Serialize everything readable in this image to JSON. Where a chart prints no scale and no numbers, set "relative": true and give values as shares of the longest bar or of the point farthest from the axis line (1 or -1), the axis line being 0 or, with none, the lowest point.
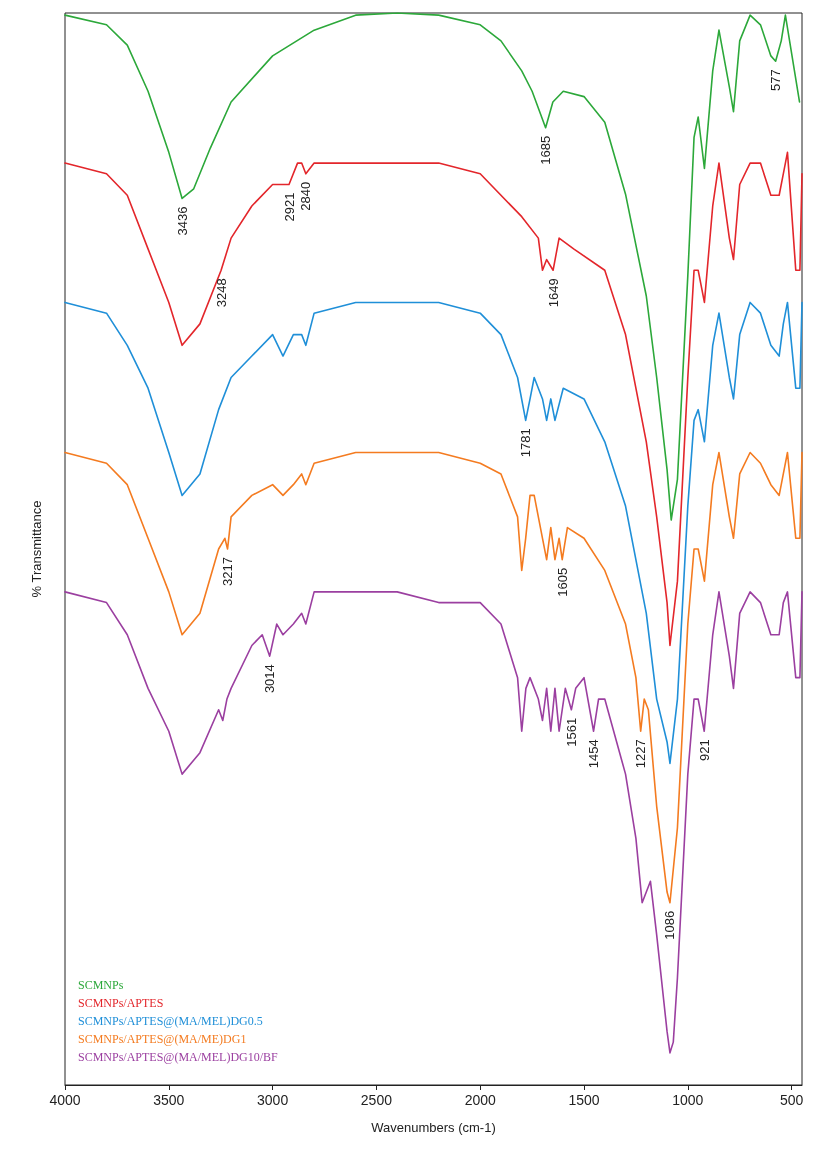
{
  "chart_data": {
    "type": "line",
    "relative": true,
    "xlabel": "Wavenumbers (cm-1)",
    "ylabel": "% Transmittance",
    "xlim": [
      4000,
      450
    ],
    "xticks": [
      4000,
      3500,
      3000,
      2500,
      2000,
      1500,
      1000,
      500
    ],
    "grid": false,
    "legend": "bottom left",
    "marker": "none",
    "line_style": "solid",
    "series": [
      {
        "name": "SCMNPs",
        "color": "#2ca83a",
        "x": [
          4000,
          3800,
          3700,
          3600,
          3500,
          3436,
          3380,
          3300,
          3200,
          3000,
          2800,
          2600,
          2400,
          2200,
          2000,
          1900,
          1800,
          1750,
          1685,
          1650,
          1600,
          1500,
          1400,
          1300,
          1200,
          1150,
          1100,
          1080,
          1050,
          1000,
          970,
          950,
          920,
          880,
          850,
          800,
          780,
          750,
          700,
          650,
          600,
          577,
          550,
          530,
          462
        ],
        "values": [
          0.998,
          0.989,
          0.97,
          0.927,
          0.87,
          0.827,
          0.836,
          0.874,
          0.917,
          0.96,
          0.984,
          0.998,
          1,
          0.998,
          0.989,
          0.974,
          0.946,
          0.927,
          0.893,
          0.917,
          0.927,
          0.922,
          0.898,
          0.831,
          0.736,
          0.66,
          0.574,
          0.527,
          0.565,
          0.755,
          0.884,
          0.903,
          0.855,
          0.946,
          0.984,
          0.931,
          0.908,
          0.974,
          0.998,
          0.989,
          0.96,
          0.955,
          0.974,
          0.998,
          0.917
        ]
      },
      {
        "name": "SCMNPs/APTES",
        "color": "#e3262b",
        "x": [
          4000,
          3800,
          3700,
          3600,
          3500,
          3436,
          3350,
          3248,
          3200,
          3100,
          3000,
          2921,
          2880,
          2860,
          2840,
          2800,
          2600,
          2200,
          2000,
          1800,
          1720,
          1700,
          1680,
          1649,
          1620,
          1550,
          1400,
          1300,
          1200,
          1150,
          1100,
          1086,
          1050,
          1000,
          970,
          950,
          920,
          880,
          850,
          800,
          780,
          750,
          700,
          650,
          600,
          560,
          540,
          520,
          480,
          460,
          450
        ],
        "values": [
          0.86,
          0.85,
          0.83,
          0.78,
          0.73,
          0.69,
          0.71,
          0.76,
          0.79,
          0.82,
          0.84,
          0.84,
          0.86,
          0.86,
          0.85,
          0.86,
          0.86,
          0.86,
          0.85,
          0.81,
          0.79,
          0.76,
          0.77,
          0.76,
          0.79,
          0.78,
          0.76,
          0.7,
          0.6,
          0.53,
          0.45,
          0.41,
          0.47,
          0.66,
          0.76,
          0.76,
          0.73,
          0.82,
          0.86,
          0.79,
          0.77,
          0.84,
          0.86,
          0.86,
          0.83,
          0.83,
          0.85,
          0.87,
          0.76,
          0.76,
          0.85
        ]
      },
      {
        "name": "SCMNPs/APTES@(MA/MEL)DG0.5",
        "color": "#1f8fd8",
        "x": [
          4000,
          3800,
          3700,
          3600,
          3500,
          3436,
          3350,
          3260,
          3200,
          3100,
          3000,
          2950,
          2900,
          2860,
          2840,
          2800,
          2600,
          2400,
          2200,
          2000,
          1900,
          1820,
          1781,
          1760,
          1740,
          1700,
          1680,
          1660,
          1640,
          1600,
          1500,
          1400,
          1300,
          1200,
          1150,
          1100,
          1086,
          1050,
          1000,
          970,
          950,
          920,
          880,
          850,
          800,
          780,
          750,
          700,
          650,
          600,
          560,
          540,
          520,
          480,
          460,
          450
        ],
        "values": [
          0.73,
          0.72,
          0.69,
          0.65,
          0.59,
          0.55,
          0.57,
          0.63,
          0.66,
          0.68,
          0.7,
          0.68,
          0.7,
          0.7,
          0.69,
          0.72,
          0.73,
          0.73,
          0.73,
          0.72,
          0.7,
          0.66,
          0.62,
          0.64,
          0.66,
          0.64,
          0.62,
          0.64,
          0.62,
          0.65,
          0.64,
          0.6,
          0.54,
          0.44,
          0.36,
          0.32,
          0.3,
          0.36,
          0.54,
          0.62,
          0.63,
          0.6,
          0.69,
          0.72,
          0.66,
          0.64,
          0.7,
          0.73,
          0.72,
          0.69,
          0.68,
          0.71,
          0.73,
          0.65,
          0.65,
          0.73
        ]
      },
      {
        "name": "SCMNPs/APTES@(MA/ME)DG1",
        "color": "#f47b20",
        "x": [
          4000,
          3800,
          3700,
          3600,
          3500,
          3436,
          3350,
          3260,
          3230,
          3217,
          3200,
          3100,
          3000,
          2950,
          2900,
          2860,
          2840,
          2800,
          2600,
          2400,
          2200,
          2000,
          1900,
          1820,
          1800,
          1781,
          1760,
          1740,
          1700,
          1680,
          1660,
          1640,
          1620,
          1605,
          1580,
          1500,
          1400,
          1300,
          1250,
          1227,
          1210,
          1190,
          1150,
          1100,
          1086,
          1050,
          1000,
          970,
          950,
          920,
          880,
          850,
          800,
          780,
          750,
          700,
          650,
          600,
          560,
          540,
          520,
          480,
          460,
          450
        ],
        "values": [
          0.59,
          0.58,
          0.56,
          0.51,
          0.46,
          0.42,
          0.44,
          0.5,
          0.51,
          0.5,
          0.53,
          0.55,
          0.56,
          0.55,
          0.56,
          0.57,
          0.56,
          0.58,
          0.59,
          0.59,
          0.59,
          0.58,
          0.57,
          0.53,
          0.48,
          0.51,
          0.55,
          0.55,
          0.51,
          0.49,
          0.52,
          0.49,
          0.51,
          0.49,
          0.52,
          0.51,
          0.48,
          0.43,
          0.38,
          0.33,
          0.36,
          0.35,
          0.26,
          0.18,
          0.17,
          0.24,
          0.43,
          0.5,
          0.5,
          0.47,
          0.56,
          0.59,
          0.53,
          0.51,
          0.57,
          0.59,
          0.58,
          0.56,
          0.55,
          0.57,
          0.59,
          0.51,
          0.51,
          0.59
        ]
      },
      {
        "name": "SCMNPs/APTES@(MA/MEL)DG10/BF",
        "color": "#9b3fa0",
        "x": [
          4000,
          3800,
          3700,
          3600,
          3500,
          3436,
          3350,
          3260,
          3240,
          3220,
          3200,
          3100,
          3050,
          3014,
          2980,
          2950,
          2900,
          2860,
          2840,
          2800,
          2600,
          2400,
          2200,
          2000,
          1900,
          1820,
          1800,
          1780,
          1760,
          1720,
          1700,
          1680,
          1660,
          1640,
          1620,
          1590,
          1561,
          1540,
          1500,
          1454,
          1430,
          1400,
          1300,
          1250,
          1220,
          1200,
          1180,
          1150,
          1100,
          1086,
          1070,
          1050,
          1000,
          970,
          950,
          921,
          880,
          850,
          800,
          780,
          750,
          700,
          650,
          600,
          560,
          540,
          520,
          480,
          460,
          450
        ],
        "values": [
          0.46,
          0.45,
          0.42,
          0.37,
          0.33,
          0.29,
          0.31,
          0.35,
          0.34,
          0.36,
          0.37,
          0.41,
          0.42,
          0.4,
          0.43,
          0.42,
          0.43,
          0.44,
          0.43,
          0.46,
          0.46,
          0.46,
          0.45,
          0.45,
          0.43,
          0.38,
          0.33,
          0.37,
          0.38,
          0.36,
          0.34,
          0.37,
          0.33,
          0.37,
          0.33,
          0.37,
          0.35,
          0.37,
          0.38,
          0.33,
          0.36,
          0.36,
          0.29,
          0.23,
          0.17,
          0.18,
          0.19,
          0.14,
          0.05,
          0.03,
          0.04,
          0.1,
          0.29,
          0.36,
          0.36,
          0.33,
          0.42,
          0.46,
          0.4,
          0.37,
          0.44,
          0.46,
          0.45,
          0.42,
          0.42,
          0.45,
          0.46,
          0.38,
          0.38,
          0.46
        ]
      }
    ],
    "annotations": [
      {
        "text": "3436",
        "x": 3436,
        "y": 0.827
      },
      {
        "text": "2921",
        "x": 2921,
        "y": 0.84
      },
      {
        "text": "2840",
        "x": 2840,
        "y": 0.85
      },
      {
        "text": "3248",
        "x": 3248,
        "y": 0.76
      },
      {
        "text": "1685",
        "x": 1685,
        "y": 0.893
      },
      {
        "text": "1649",
        "x": 1649,
        "y": 0.76
      },
      {
        "text": "1781",
        "x": 1781,
        "y": 0.62
      },
      {
        "text": "3217",
        "x": 3217,
        "y": 0.5
      },
      {
        "text": "1605",
        "x": 1605,
        "y": 0.49
      },
      {
        "text": "3014",
        "x": 3014,
        "y": 0.4
      },
      {
        "text": "1561",
        "x": 1561,
        "y": 0.35
      },
      {
        "text": "1454",
        "x": 1454,
        "y": 0.33
      },
      {
        "text": "1227",
        "x": 1227,
        "y": 0.33
      },
      {
        "text": "1086",
        "x": 1086,
        "y": 0.17
      },
      {
        "text": "921",
        "x": 921,
        "y": 0.33
      },
      {
        "text": "577",
        "x": 577,
        "y": 0.955
      }
    ]
  }
}
